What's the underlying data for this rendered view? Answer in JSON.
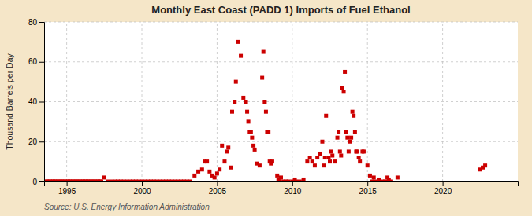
{
  "chart_data": {
    "type": "scatter",
    "title": "Monthly East Coast (PADD 1) Imports of Fuel Ethanol",
    "ylabel": "Thousand Barrels per Day",
    "source": "Source: U.S. Energy Information Administration",
    "color": "#cc0000",
    "marker": "square",
    "grid": true,
    "xlim": [
      1993.5,
      2025
    ],
    "ylim": [
      0,
      80
    ],
    "xticks": [
      1995,
      2000,
      2005,
      2010,
      2015,
      2020
    ],
    "yticks": [
      0,
      20,
      40,
      60,
      80
    ],
    "x": [
      1997.5,
      1997.75,
      2003.5,
      2003.75,
      2004.0,
      2004.17,
      2004.33,
      2004.5,
      2004.67,
      2004.83,
      2005.0,
      2005.17,
      2005.33,
      2005.5,
      2005.67,
      2005.75,
      2005.92,
      2006.0,
      2006.17,
      2006.25,
      2006.42,
      2006.58,
      2006.75,
      2006.92,
      2007.0,
      2007.08,
      2007.17,
      2007.25,
      2007.33,
      2007.42,
      2007.5,
      2007.67,
      2007.83,
      2008.0,
      2008.08,
      2008.17,
      2008.25,
      2008.33,
      2008.42,
      2008.5,
      2008.58,
      2008.67,
      2009.0,
      2009.08,
      2009.17,
      2009.25,
      2009.42,
      2009.58,
      2009.75,
      2010.0,
      2010.17,
      2010.25,
      2010.5,
      2010.75,
      2011.0,
      2011.17,
      2011.33,
      2011.5,
      2011.67,
      2011.83,
      2012.0,
      2012.08,
      2012.17,
      2012.25,
      2012.42,
      2012.5,
      2012.58,
      2012.67,
      2012.83,
      2013.0,
      2013.08,
      2013.17,
      2013.25,
      2013.33,
      2013.42,
      2013.5,
      2013.58,
      2013.67,
      2013.75,
      2013.83,
      2013.92,
      2014.0,
      2014.08,
      2014.17,
      2014.25,
      2014.33,
      2014.42,
      2014.5,
      2014.67,
      2014.75,
      2015.0,
      2015.17,
      2015.33,
      2015.42,
      2015.5,
      2015.75,
      2016.0,
      2016.17,
      2016.33,
      2016.42,
      2016.58,
      2017.0,
      2022.5,
      2022.67,
      2022.83,
      1993.6,
      1993.7,
      1993.8,
      1993.9,
      1994.0,
      1994.1,
      1994.2,
      1994.3,
      1994.4,
      1994.5,
      1994.6,
      1994.7,
      1994.8,
      1994.9,
      1995.0,
      1995.1,
      1995.2,
      1995.3,
      1995.4,
      1995.5,
      1995.6,
      1995.7,
      1995.8,
      1995.9,
      1996.0,
      1996.1,
      1996.2,
      1996.3,
      1996.4,
      1996.5,
      1996.6,
      1996.7,
      1996.8,
      1996.9,
      1997.0,
      1997.1,
      1997.2,
      1997.3,
      1998.0,
      1998.2,
      1998.4,
      1998.6,
      1998.8,
      1999.0,
      1999.2,
      1999.4,
      1999.6,
      1999.8,
      2000.0,
      2000.2,
      2000.4,
      2000.6,
      2000.8,
      2001.0,
      2001.2,
      2001.4,
      2001.6,
      2001.8,
      2002.0,
      2002.2,
      2002.4,
      2002.6,
      2002.8,
      2003.0,
      2003.2
    ],
    "values": [
      2,
      0,
      3,
      5,
      6,
      10,
      10,
      5,
      3,
      2,
      4,
      6,
      18,
      10,
      15,
      17,
      7,
      35,
      40,
      50,
      70,
      63,
      42,
      40,
      35,
      30,
      25,
      25,
      22,
      18,
      16,
      9,
      8,
      52,
      65,
      40,
      35,
      25,
      25,
      10,
      9,
      10,
      3,
      1,
      0,
      2,
      0,
      0,
      0,
      0,
      1,
      0,
      0,
      1,
      10,
      12,
      10,
      8,
      12,
      14,
      20,
      8,
      12,
      33,
      12,
      10,
      15,
      13,
      10,
      22,
      25,
      15,
      13,
      47,
      45,
      55,
      25,
      22,
      15,
      20,
      22,
      35,
      33,
      25,
      15,
      15,
      12,
      10,
      15,
      15,
      8,
      3,
      0,
      2,
      0,
      1,
      0,
      0,
      2,
      1,
      0,
      2,
      6,
      7,
      8,
      0,
      0,
      0,
      0,
      0,
      0,
      0,
      0,
      0,
      0,
      0,
      0,
      0,
      0,
      0,
      0,
      0,
      0,
      0,
      0,
      0,
      0,
      0,
      0,
      0,
      0,
      0,
      0,
      0,
      0,
      0,
      0,
      0,
      0,
      0,
      0,
      0,
      0,
      0,
      0,
      0,
      0,
      0,
      0,
      0,
      0,
      0,
      0,
      0,
      0,
      0,
      0,
      0,
      0,
      0,
      0,
      0,
      0,
      0,
      0,
      0,
      0,
      0,
      0,
      0
    ]
  }
}
